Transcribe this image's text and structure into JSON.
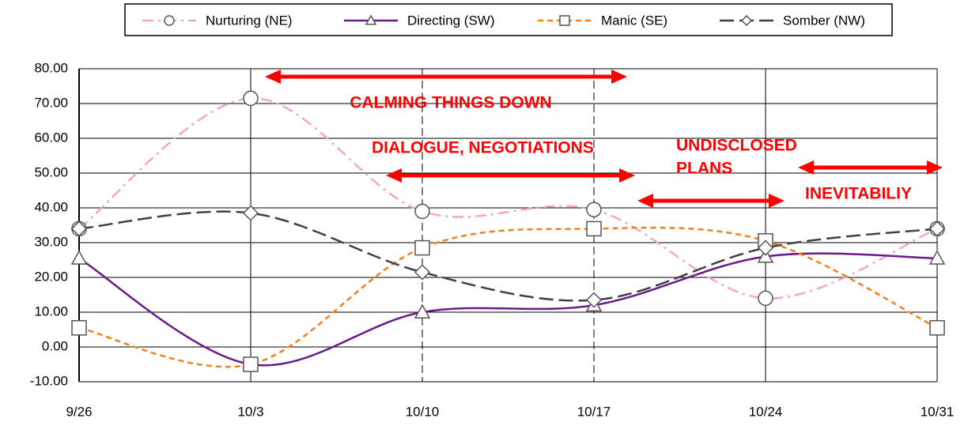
{
  "chart_data": {
    "type": "line",
    "categories": [
      "9/26",
      "10/3",
      "10/10",
      "10/17",
      "10/24",
      "10/31"
    ],
    "series": [
      {
        "name": "Nurturing (NE)",
        "color": "#f4a6c8",
        "dash": "14 6 3 6",
        "marker": "circle",
        "values": [
          34,
          71.5,
          39,
          39.5,
          14,
          34
        ]
      },
      {
        "name": "Directing (SW)",
        "color": "#6a1b8a",
        "dash": "none",
        "marker": "triangle",
        "values": [
          25.5,
          -5,
          10,
          12,
          26,
          25.5
        ]
      },
      {
        "name": "Manic (SE)",
        "color": "#f0821e",
        "dash": "7 5",
        "marker": "square",
        "values": [
          5.5,
          -5,
          28.5,
          34,
          30.5,
          5.5
        ]
      },
      {
        "name": "Somber (NW)",
        "color": "#404040",
        "dash": "18 7",
        "marker": "diamond",
        "values": [
          34,
          38.5,
          21.5,
          13.5,
          28.5,
          34
        ]
      }
    ],
    "ylim": [
      -10,
      80
    ],
    "yticks": [
      {
        "value": -10,
        "label": "-10.00"
      },
      {
        "value": 0,
        "label": "0.00"
      },
      {
        "value": 10,
        "label": "10.00"
      },
      {
        "value": 20,
        "label": "20.00"
      },
      {
        "value": 30,
        "label": "30.00"
      },
      {
        "value": 40,
        "label": "40.00"
      },
      {
        "value": 50,
        "label": "50.00"
      },
      {
        "value": 60,
        "label": "60.00"
      },
      {
        "value": 70,
        "label": "70.00"
      },
      {
        "value": 80,
        "label": "80.00"
      }
    ],
    "grid": true,
    "legend": "top",
    "annotations": [
      "CALMING THINGS DOWN",
      "DIALOGUE, NEGOTIATIONS",
      "UNDISCLOSED",
      "PLANS",
      "INEVITABILIY"
    ]
  }
}
